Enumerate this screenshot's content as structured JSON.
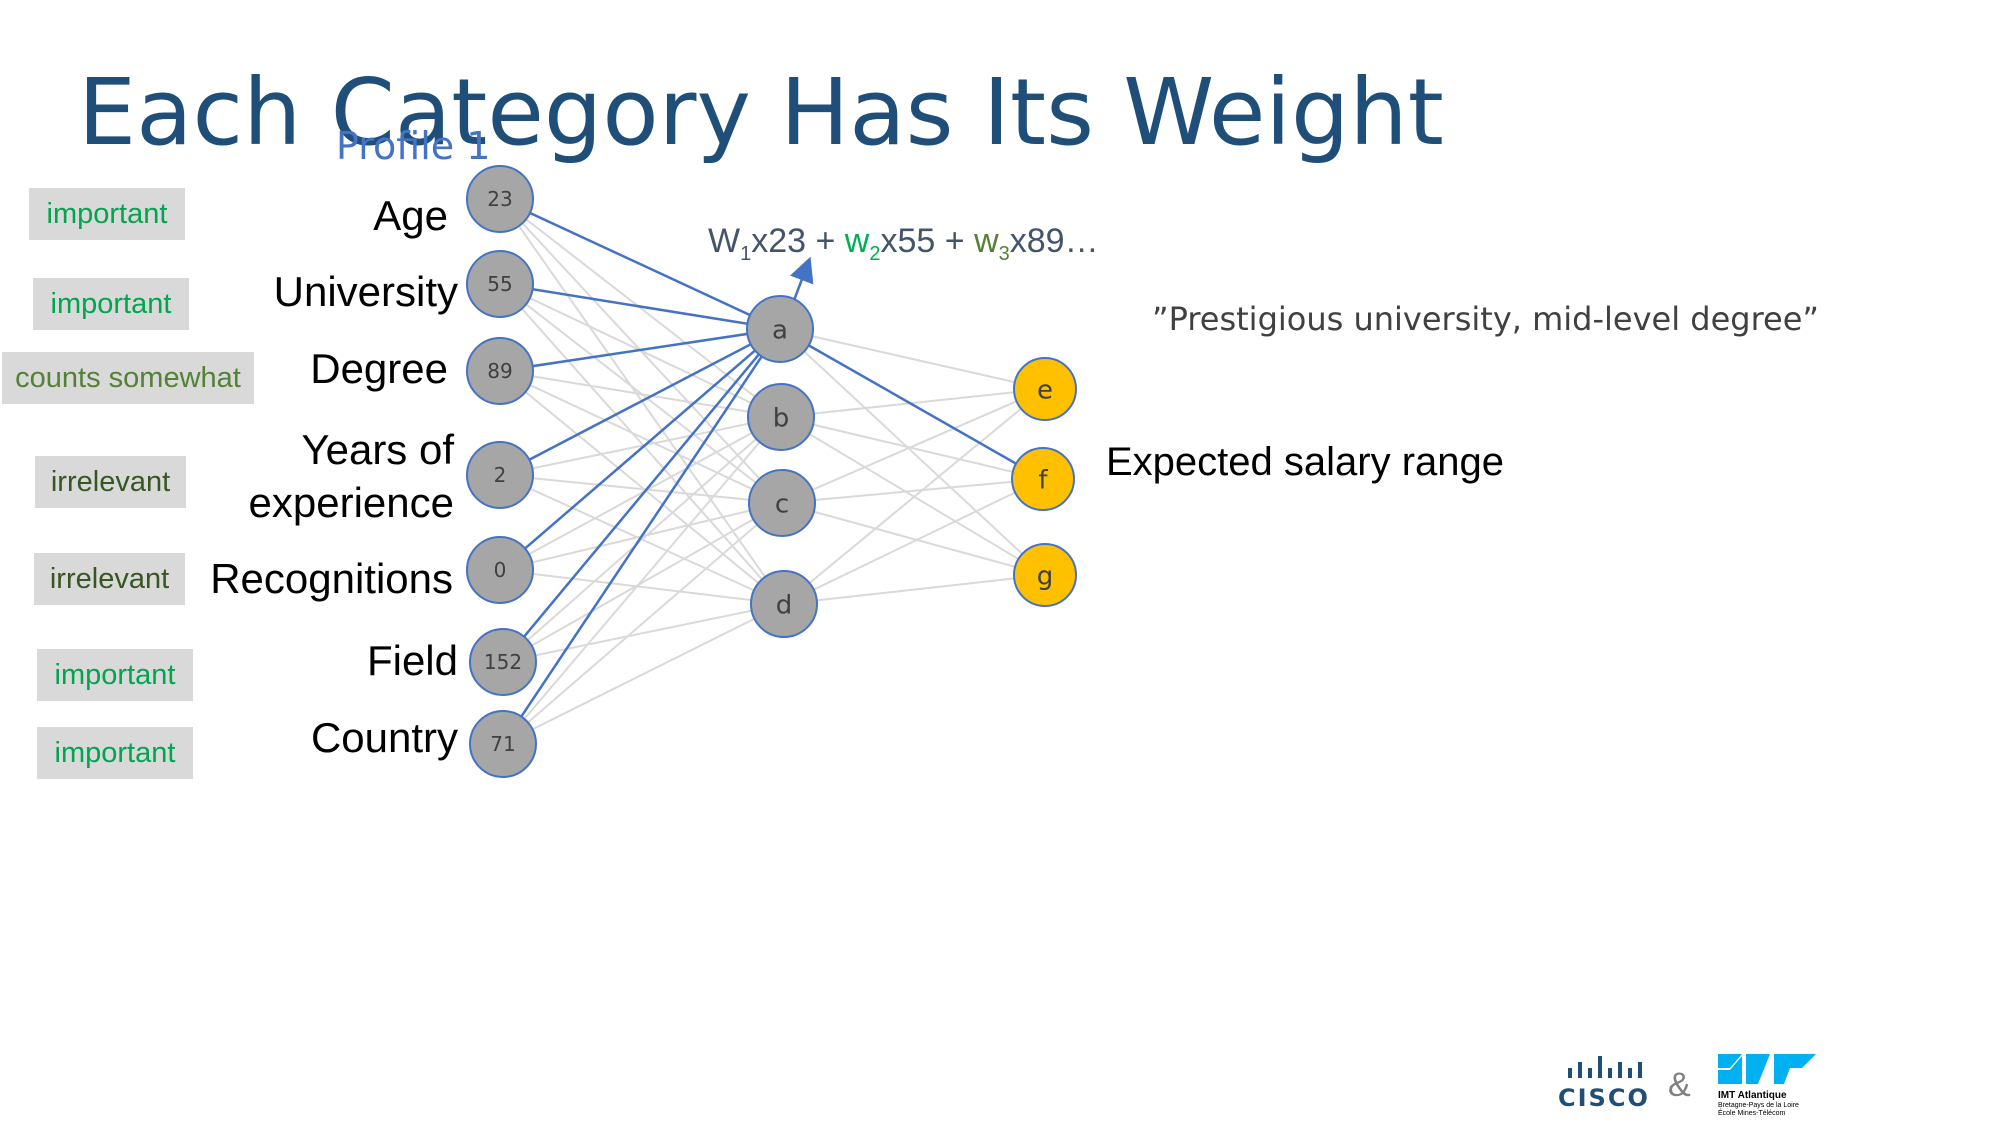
{
  "slide": {
    "title": "Each Category Has Its Weight",
    "profile_label": "Profile 1"
  },
  "categories": [
    {
      "label": "Age",
      "value": "23",
      "tag": "important"
    },
    {
      "label": "University",
      "value": "55",
      "tag": "important"
    },
    {
      "label": "Degree",
      "value": "89",
      "tag": "counts somewhat"
    },
    {
      "label_line1": "Years of",
      "label_line2": "experience",
      "value": "2",
      "tag": "irrelevant"
    },
    {
      "label": "Recognitions",
      "value": "0",
      "tag": "irrelevant"
    },
    {
      "label": "Field",
      "value": "152",
      "tag": "important"
    },
    {
      "label": "Country",
      "value": "71",
      "tag": "important"
    }
  ],
  "hidden_nodes": [
    "a",
    "b",
    "c",
    "d"
  ],
  "output_nodes": [
    "e",
    "f",
    "g"
  ],
  "formula": {
    "w1": "W",
    "sub1": "1",
    "t1": "x23 + ",
    "w2": "w",
    "sub2": "2",
    "t2": "x55 + ",
    "w3": "w",
    "sub3": "3",
    "t3": "x89…"
  },
  "quote": "”Prestigious university, mid-level degree”",
  "output_label": "Expected salary range",
  "footer": {
    "cisco": "CISCO",
    "amp": "&",
    "imt_name": "IMT Atlantique",
    "imt_sub1": "Bretagne-Pays de la Loire",
    "imt_sub2": "École Mines-Télécom"
  },
  "colors": {
    "title": "#1f4e79",
    "input_node_fill": "#a6a6a6",
    "node_stroke": "#4472c4",
    "output_node_fill": "#ffc000",
    "active_edge": "#4472c4",
    "inactive_edge": "#d9d9d9",
    "tag_bg": "#d9d9d9"
  }
}
